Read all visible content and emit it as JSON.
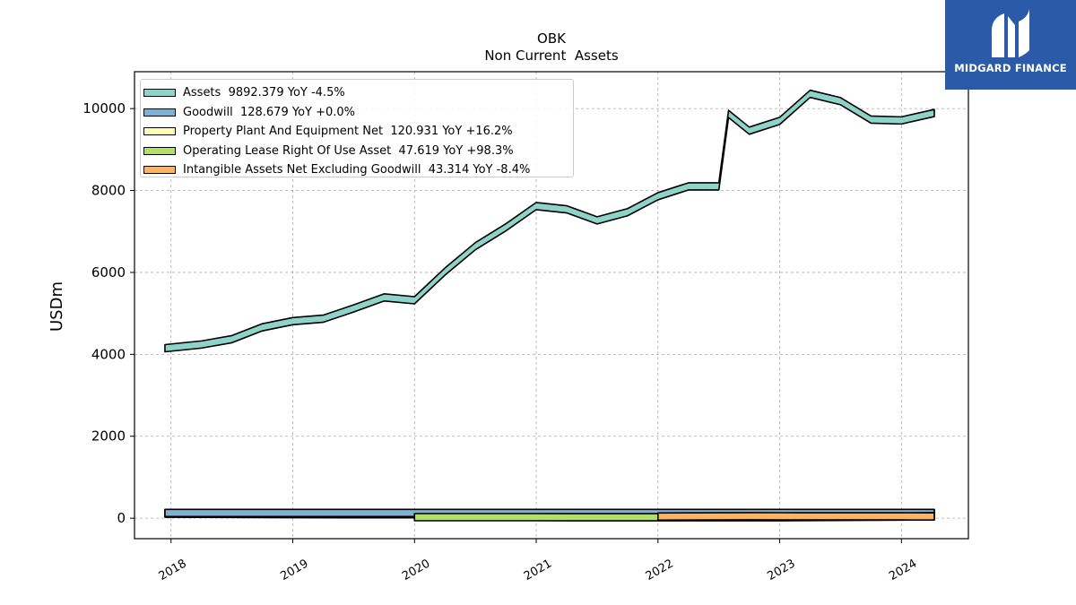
{
  "chart_data": {
    "type": "area",
    "title": "OBK",
    "subtitle": "Non Current  Assets",
    "xlabel": "",
    "ylabel": "USDm",
    "ylim": [
      -500,
      10900
    ],
    "xlim": [
      2017.7,
      2024.55
    ],
    "yticks": [
      0,
      2000,
      4000,
      6000,
      8000,
      10000
    ],
    "xticks": [
      2018,
      2019,
      2020,
      2021,
      2022,
      2023,
      2024
    ],
    "grid": true,
    "legend_position": "top-left",
    "series": [
      {
        "name": "Assets",
        "legend": "Assets  9892.379 YoY -4.5%",
        "color": "#8dd3c7",
        "x": [
          2017.95,
          2018.25,
          2018.5,
          2018.75,
          2019.0,
          2019.25,
          2019.5,
          2019.75,
          2020.0,
          2020.25,
          2020.5,
          2020.75,
          2021.0,
          2021.25,
          2021.5,
          2021.75,
          2022.0,
          2022.25,
          2022.5,
          2022.58,
          2022.75,
          2023.0,
          2023.25,
          2023.5,
          2023.75,
          2024.0,
          2024.27
        ],
        "values": [
          4150,
          4240,
          4370,
          4660,
          4810,
          4870,
          5120,
          5390,
          5320,
          6020,
          6640,
          7100,
          7620,
          7540,
          7270,
          7470,
          7860,
          8100,
          8100,
          9870,
          9460,
          9700,
          10360,
          10180,
          9730,
          9710,
          9892
        ]
      },
      {
        "name": "Goodwill",
        "legend": "Goodwill  128.679 YoY +0.0%",
        "color": "#80b1d3",
        "x": [
          2017.95,
          2024.27
        ],
        "values": [
          128.7,
          128.7
        ]
      },
      {
        "name": "Property Plant And Equipment Net",
        "legend": "Property Plant And Equipment Net  120.931 YoY +16.2%",
        "color": "#ffffb3",
        "x": [
          2017.95,
          2018.5,
          2019.0,
          2019.5,
          2020.0,
          2020.5,
          2021.0,
          2021.5,
          2022.0,
          2022.5,
          2022.75,
          2023.0,
          2023.5,
          2024.0,
          2024.27
        ],
        "values": [
          110,
          105,
          100,
          98,
          96,
          95,
          95,
          96,
          98,
          102,
          104,
          104,
          108,
          115,
          121
        ]
      },
      {
        "name": "Operating Lease Right Of Use Asset",
        "legend": "Operating Lease Right Of Use Asset  47.619 YoY +98.3%",
        "color": "#b3de69",
        "x": [
          2020.0,
          2021.0,
          2022.0,
          2022.75,
          2023.0,
          2024.0,
          2024.27
        ],
        "values": [
          25,
          25,
          24,
          24,
          24,
          40,
          47.6
        ]
      },
      {
        "name": "Intangible Assets Net Excluding Goodwill",
        "legend": "Intangible Assets Net Excluding Goodwill  43.314 YoY -8.4%",
        "color": "#fdb462",
        "x": [
          2022.0,
          2022.5,
          2022.75,
          2023.0,
          2023.5,
          2024.0,
          2024.27
        ],
        "values": [
          40,
          45,
          48,
          47,
          46,
          45,
          43.3
        ]
      }
    ]
  },
  "logo": {
    "text": "MIDGARD FINANCE"
  }
}
